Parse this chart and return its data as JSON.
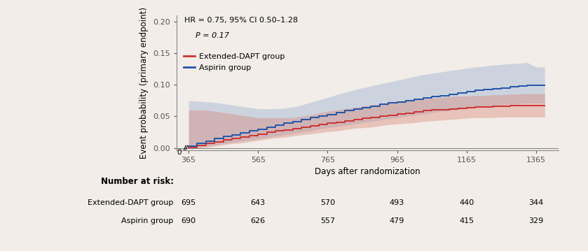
{
  "xlabel": "Days after randomization",
  "ylabel": "Event probability (primary endpoint)",
  "xlim": [
    330,
    1430
  ],
  "ylim": [
    -0.004,
    0.21
  ],
  "yticks": [
    0.0,
    0.05,
    0.1,
    0.15,
    0.2
  ],
  "xticks": [
    365,
    565,
    765,
    965,
    1165,
    1365
  ],
  "xtick_labels": [
    "365",
    "565",
    "765",
    "965",
    "1165",
    "1365"
  ],
  "annotation_line1": "HR = 0.75, 95% CI 0.50–1.28",
  "annotation_line2": "P = 0.17",
  "legend_entries": [
    "Extended-DAPT group",
    "Aspirin group"
  ],
  "red_color": "#CC3333",
  "blue_color": "#2255AA",
  "red_fill": "#D98070",
  "blue_fill": "#90AACE",
  "background_color": "#F2EDE8",
  "number_at_risk_label": "Number at risk:",
  "risk_rows": [
    {
      "label": "Extended-DAPT group",
      "values": [
        695,
        643,
        570,
        493,
        440,
        344
      ]
    },
    {
      "label": "Aspirin group",
      "values": [
        690,
        626,
        557,
        479,
        415,
        329
      ]
    }
  ],
  "risk_x_positions": [
    365,
    565,
    765,
    965,
    1165,
    1365
  ],
  "red_x": [
    365,
    390,
    415,
    440,
    465,
    490,
    515,
    540,
    565,
    590,
    615,
    640,
    665,
    690,
    715,
    740,
    765,
    790,
    815,
    840,
    865,
    890,
    915,
    940,
    965,
    990,
    1015,
    1040,
    1065,
    1090,
    1115,
    1140,
    1165,
    1190,
    1215,
    1240,
    1265,
    1290,
    1315,
    1340,
    1365,
    1390
  ],
  "red_y": [
    0.001,
    0.004,
    0.007,
    0.01,
    0.013,
    0.015,
    0.017,
    0.02,
    0.022,
    0.025,
    0.027,
    0.029,
    0.031,
    0.033,
    0.035,
    0.037,
    0.039,
    0.041,
    0.043,
    0.045,
    0.047,
    0.048,
    0.05,
    0.052,
    0.054,
    0.055,
    0.057,
    0.059,
    0.06,
    0.061,
    0.062,
    0.063,
    0.064,
    0.065,
    0.065,
    0.066,
    0.066,
    0.067,
    0.067,
    0.067,
    0.067,
    0.067
  ],
  "red_ci_low": [
    0.0,
    0.0,
    0.001,
    0.003,
    0.005,
    0.007,
    0.008,
    0.01,
    0.012,
    0.014,
    0.016,
    0.017,
    0.019,
    0.021,
    0.022,
    0.024,
    0.026,
    0.027,
    0.029,
    0.031,
    0.032,
    0.033,
    0.035,
    0.037,
    0.038,
    0.039,
    0.04,
    0.042,
    0.043,
    0.044,
    0.045,
    0.046,
    0.047,
    0.048,
    0.048,
    0.048,
    0.049,
    0.049,
    0.049,
    0.049,
    0.049,
    0.049
  ],
  "red_ci_high": [
    0.06,
    0.06,
    0.06,
    0.058,
    0.056,
    0.054,
    0.052,
    0.05,
    0.048,
    0.048,
    0.048,
    0.048,
    0.048,
    0.05,
    0.052,
    0.055,
    0.058,
    0.06,
    0.062,
    0.064,
    0.066,
    0.068,
    0.07,
    0.072,
    0.074,
    0.076,
    0.077,
    0.078,
    0.079,
    0.08,
    0.081,
    0.082,
    0.082,
    0.083,
    0.083,
    0.084,
    0.084,
    0.085,
    0.085,
    0.086,
    0.086,
    0.086
  ],
  "blue_x": [
    365,
    390,
    415,
    440,
    465,
    490,
    515,
    540,
    565,
    590,
    615,
    640,
    665,
    690,
    715,
    740,
    765,
    790,
    815,
    840,
    865,
    890,
    915,
    940,
    965,
    990,
    1015,
    1040,
    1065,
    1090,
    1115,
    1140,
    1165,
    1190,
    1215,
    1240,
    1265,
    1290,
    1315,
    1340,
    1365,
    1390
  ],
  "blue_y": [
    0.003,
    0.007,
    0.011,
    0.015,
    0.018,
    0.021,
    0.024,
    0.027,
    0.03,
    0.033,
    0.036,
    0.039,
    0.042,
    0.045,
    0.048,
    0.051,
    0.053,
    0.056,
    0.059,
    0.062,
    0.064,
    0.066,
    0.069,
    0.071,
    0.073,
    0.075,
    0.077,
    0.079,
    0.081,
    0.083,
    0.085,
    0.087,
    0.089,
    0.091,
    0.092,
    0.094,
    0.095,
    0.097,
    0.098,
    0.099,
    0.099,
    0.099
  ],
  "blue_ci_low": [
    0.0,
    0.001,
    0.003,
    0.005,
    0.007,
    0.009,
    0.011,
    0.013,
    0.015,
    0.017,
    0.019,
    0.021,
    0.023,
    0.025,
    0.027,
    0.03,
    0.032,
    0.034,
    0.036,
    0.038,
    0.04,
    0.042,
    0.044,
    0.046,
    0.048,
    0.05,
    0.052,
    0.054,
    0.056,
    0.058,
    0.059,
    0.061,
    0.062,
    0.064,
    0.065,
    0.067,
    0.068,
    0.069,
    0.07,
    0.071,
    0.071,
    0.071
  ],
  "blue_ci_high": [
    0.075,
    0.074,
    0.073,
    0.072,
    0.07,
    0.068,
    0.066,
    0.064,
    0.062,
    0.062,
    0.062,
    0.063,
    0.065,
    0.068,
    0.072,
    0.076,
    0.08,
    0.084,
    0.088,
    0.092,
    0.095,
    0.098,
    0.101,
    0.104,
    0.107,
    0.11,
    0.113,
    0.116,
    0.118,
    0.12,
    0.122,
    0.124,
    0.126,
    0.128,
    0.129,
    0.131,
    0.132,
    0.133,
    0.134,
    0.135,
    0.128,
    0.128
  ]
}
